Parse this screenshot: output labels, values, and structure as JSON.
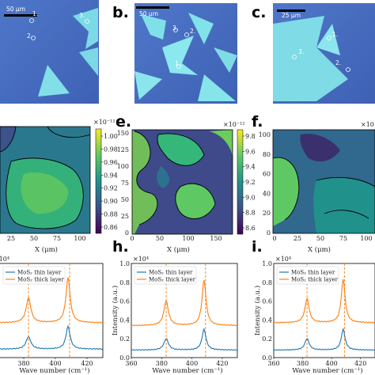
{
  "panels": {
    "a": {
      "letter": "",
      "scale_bar": "50 µm",
      "points": [
        "1.",
        "2.",
        "3."
      ]
    },
    "b": {
      "letter": "b.",
      "scale_bar": "50 µm",
      "points": [
        "1.",
        "2.",
        "3."
      ]
    },
    "c": {
      "letter": "c.",
      "scale_bar": "25 µm",
      "points": [
        "1.",
        "2.",
        "3."
      ]
    },
    "d": {
      "letter": "",
      "colorbar_exponent": "×10⁻¹¹",
      "colorbar_ticks": [
        "1.00",
        "0.98",
        "0.96",
        "0.94",
        "0.92",
        "0.90",
        "0.88",
        "0.86"
      ],
      "xlabel": "X (μm)",
      "xticks": [
        "25",
        "50",
        "75",
        "100"
      ]
    },
    "e": {
      "letter": "e.",
      "colorbar_exponent": "×10⁻¹²",
      "colorbar_ticks": [
        "9.8",
        "9.6",
        "9.4",
        "9.2",
        "9.0",
        "8.8",
        "8.6"
      ],
      "xlabel": "X (μm)",
      "xticks": [
        "0",
        "50",
        "100",
        "150"
      ],
      "yticks": [
        "0",
        "25",
        "50",
        "75",
        "100",
        "125",
        "150"
      ]
    },
    "f": {
      "letter": "f.",
      "colorbar_exponent": "×10",
      "xlabel": "X (μm)",
      "xticks": [
        "0",
        "25",
        "50",
        "75",
        "100"
      ],
      "yticks": [
        "0",
        "20",
        "40",
        "60",
        "80",
        "100"
      ]
    }
  },
  "chart_data": [
    {
      "type": "line",
      "letter": "",
      "exponent": "×10⁴",
      "xlabel": "Wave number (cm⁻¹)",
      "ylabel": "",
      "xlim": [
        360,
        430
      ],
      "ylim": [
        0,
        1.0
      ],
      "xticks": [
        "380",
        "400",
        "420"
      ],
      "yticks": [],
      "vlines": [
        383,
        409
      ],
      "series": [
        {
          "name": "MoS₂ thin layer",
          "color": "#1f77b4",
          "offset": 0.09,
          "scale": 0.24
        },
        {
          "name": "MoS₂ thick layer",
          "color": "#ff7f0e",
          "offset": 0.37,
          "scale": 0.48
        }
      ]
    },
    {
      "type": "line",
      "letter": "h.",
      "exponent": "×10⁴",
      "xlabel": "Wave number (cm⁻¹)",
      "ylabel": "Intensity (a.u.)",
      "xlim": [
        360,
        430
      ],
      "ylim": [
        0,
        1.0
      ],
      "xticks": [
        "360",
        "380",
        "400",
        "420"
      ],
      "yticks": [
        "0.0",
        "0.2",
        "0.4",
        "0.6",
        "0.8",
        "1.0"
      ],
      "vlines": [
        383,
        409
      ],
      "series": [
        {
          "name": "MoS₂ thin layer",
          "color": "#1f77b4",
          "offset": 0.08,
          "scale": 0.22
        },
        {
          "name": "MoS₂ thick layer",
          "color": "#ff7f0e",
          "offset": 0.34,
          "scale": 0.48
        }
      ]
    },
    {
      "type": "line",
      "letter": "i.",
      "exponent": "×10⁴",
      "xlabel": "Wave number (cm⁻¹)",
      "ylabel": "Intensity (a.u.)",
      "xlim": [
        360,
        430
      ],
      "ylim": [
        0,
        1.0
      ],
      "xticks": [
        "360",
        "380",
        "400",
        "420"
      ],
      "yticks": [
        "0.0",
        "0.2",
        "0.4",
        "0.6",
        "0.8",
        "1.0"
      ],
      "vlines": [
        383,
        409
      ],
      "series": [
        {
          "name": "MoS₂ thin layer",
          "color": "#1f77b4",
          "offset": 0.08,
          "scale": 0.22
        },
        {
          "name": "MoS₂ thick layer",
          "color": "#ff7f0e",
          "offset": 0.37,
          "scale": 0.46
        }
      ]
    }
  ]
}
